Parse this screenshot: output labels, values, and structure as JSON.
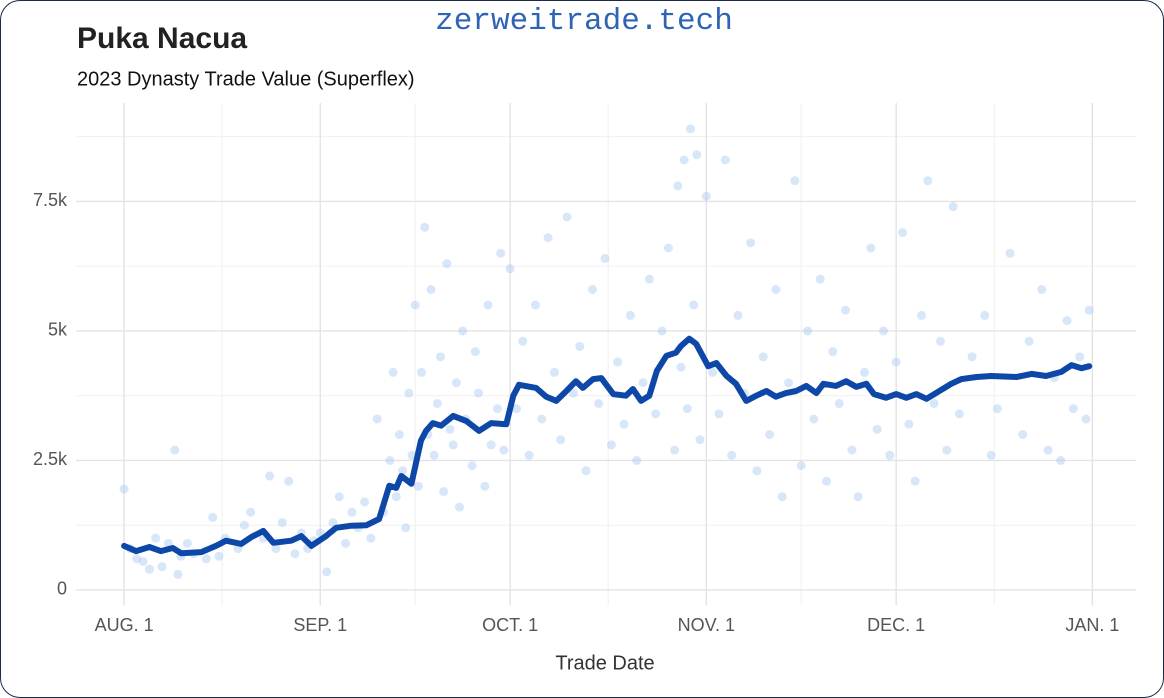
{
  "chart_data": {
    "type": "scatter",
    "watermark": "zerweitrade.tech",
    "title": "Puka Nacua",
    "subtitle": "2023 Dynasty Trade Value (Superflex)",
    "x_label": "Trade Date",
    "xlim": [
      -7.6,
      159.9
    ],
    "xticks": [
      {
        "value": 0,
        "label": "AUG. 1"
      },
      {
        "value": 31,
        "label": "SEP. 1"
      },
      {
        "value": 61,
        "label": "OCT. 1"
      },
      {
        "value": 92,
        "label": "NOV. 1"
      },
      {
        "value": 122,
        "label": "DEC. 1"
      },
      {
        "value": 153,
        "label": "JAN. 1"
      }
    ],
    "ylim": [
      -300,
      9400
    ],
    "yticks": [
      0,
      {
        "value": 2500,
        "label": "2.5k"
      },
      {
        "value": 5000,
        "label": "5k"
      },
      {
        "value": 7500,
        "label": "7.5k"
      }
    ],
    "grid": true,
    "series": [
      {
        "type": "scatter",
        "color": "#a9c7f2",
        "x": [
          0,
          1,
          2,
          3,
          4,
          5,
          6,
          7,
          8,
          8.5,
          9,
          10,
          11,
          13,
          14,
          15,
          16,
          18,
          19,
          20,
          22,
          23,
          24,
          25,
          26,
          27,
          28,
          29,
          30,
          31,
          32,
          33,
          34,
          35,
          36,
          37,
          38,
          39,
          40,
          41,
          42,
          42.5,
          43,
          43.5,
          44,
          44.5,
          45,
          45.5,
          46,
          46.5,
          47,
          47.5,
          48,
          48.5,
          49,
          49.5,
          50,
          50.5,
          51,
          51.5,
          52,
          52.5,
          53,
          53.5,
          54,
          55,
          55.5,
          56,
          57,
          57.5,
          58,
          59,
          59.5,
          60,
          61,
          62,
          63,
          64,
          65,
          66,
          67,
          68,
          69,
          70,
          71,
          72,
          73,
          74,
          75,
          76,
          77,
          78,
          79,
          80,
          81,
          82,
          83,
          84,
          85,
          86,
          87,
          87.5,
          88,
          88.5,
          89,
          89.5,
          90,
          90.5,
          91,
          92,
          93,
          94,
          95,
          96,
          97,
          98,
          99,
          100,
          101,
          102,
          103,
          104,
          105,
          106,
          107,
          108,
          109,
          110,
          111,
          112,
          113,
          114,
          115,
          116,
          117,
          118,
          119,
          120,
          121,
          122,
          123,
          124,
          125,
          126,
          127,
          128,
          129,
          130,
          131,
          132,
          134,
          136,
          137,
          138,
          140,
          142,
          143,
          145,
          146,
          147,
          148,
          149,
          150,
          151,
          152,
          152.5
        ],
        "values": [
          1950,
          800,
          600,
          550,
          400,
          1000,
          450,
          900,
          2700,
          300,
          650,
          900,
          700,
          600,
          1400,
          650,
          1000,
          800,
          1250,
          1500,
          1000,
          2200,
          800,
          1300,
          2100,
          700,
          1100,
          800,
          950,
          1100,
          350,
          1300,
          1800,
          900,
          1500,
          1200,
          1700,
          1000,
          3300,
          1500,
          2500,
          4200,
          1800,
          3000,
          2300,
          1200,
          3800,
          2600,
          5500,
          2000,
          4200,
          7000,
          3000,
          5800,
          2600,
          3600,
          4500,
          1900,
          6300,
          3100,
          2800,
          4000,
          1600,
          5000,
          3300,
          2400,
          4600,
          3800,
          2000,
          5500,
          2800,
          3500,
          6500,
          2700,
          6200,
          3500,
          4800,
          2600,
          5500,
          3300,
          6800,
          4200,
          2900,
          7200,
          3800,
          4700,
          2300,
          5800,
          3600,
          6400,
          2800,
          4400,
          3200,
          5300,
          2500,
          4000,
          6000,
          3400,
          5000,
          6600,
          2700,
          7800,
          4300,
          8300,
          3500,
          8900,
          5500,
          8400,
          2900,
          7600,
          4200,
          3400,
          8300,
          2600,
          5300,
          3800,
          6700,
          2300,
          4500,
          3000,
          5800,
          1800,
          4000,
          7900,
          2400,
          5000,
          3300,
          6000,
          2100,
          4600,
          3600,
          5400,
          2700,
          1800,
          4200,
          6600,
          3100,
          5000,
          2600,
          4400,
          6900,
          3200,
          2100,
          5300,
          7900,
          3600,
          4800,
          2700,
          7400,
          3400,
          4500,
          5300,
          2600,
          3500,
          6500,
          3000,
          4800,
          5800,
          2700,
          4100,
          2500,
          5200,
          3500,
          4500,
          3300,
          5400
        ]
      },
      {
        "type": "line",
        "color": "#0d47a8",
        "x": [
          0,
          1.9,
          4.0,
          5.8,
          7.7,
          9.0,
          12.2,
          14.5,
          16.1,
          18.5,
          20.1,
          22.0,
          23.6,
          26.4,
          28.0,
          29.6,
          31.9,
          33.5,
          35.9,
          38.3,
          40.3,
          41.9,
          43.0,
          43.8,
          45.4,
          46.9,
          47.7,
          48.8,
          50.1,
          52.0,
          54.1,
          56.1,
          58.0,
          60.4,
          61.5,
          62.4,
          65.1,
          66.7,
          68.3,
          69.9,
          71.4,
          72.5,
          74.1,
          75.4,
          77.3,
          79.3,
          80.4,
          81.7,
          83.0,
          84.2,
          85.7,
          87.2,
          88.0,
          89.3,
          90.4,
          92.3,
          93.6,
          95.2,
          96.7,
          98.3,
          99.9,
          101.5,
          103.0,
          104.6,
          106.2,
          107.8,
          109.4,
          110.5,
          112.5,
          114.1,
          115.7,
          117.3,
          118.5,
          120.4,
          122.0,
          123.6,
          125.2,
          126.8,
          128.3,
          130.7,
          132.3,
          134.7,
          137.0,
          141.0,
          143.4,
          145.7,
          148.1,
          149.7,
          151.3,
          152.5
        ],
        "values": [
          850,
          750,
          830,
          750,
          810,
          710,
          730,
          850,
          950,
          890,
          1020,
          1140,
          910,
          950,
          1040,
          850,
          1040,
          1200,
          1240,
          1250,
          1370,
          2010,
          1970,
          2200,
          2050,
          2880,
          3070,
          3220,
          3170,
          3360,
          3260,
          3070,
          3220,
          3200,
          3750,
          3960,
          3900,
          3730,
          3650,
          3840,
          4030,
          3900,
          4070,
          4090,
          3780,
          3750,
          3880,
          3650,
          3750,
          4230,
          4520,
          4580,
          4710,
          4850,
          4750,
          4320,
          4380,
          4130,
          3980,
          3650,
          3750,
          3840,
          3730,
          3800,
          3840,
          3940,
          3800,
          3980,
          3940,
          4030,
          3920,
          3980,
          3780,
          3710,
          3780,
          3710,
          3780,
          3690,
          3800,
          3980,
          4070,
          4110,
          4130,
          4110,
          4170,
          4130,
          4210,
          4340,
          4280,
          4320
        ]
      }
    ]
  }
}
